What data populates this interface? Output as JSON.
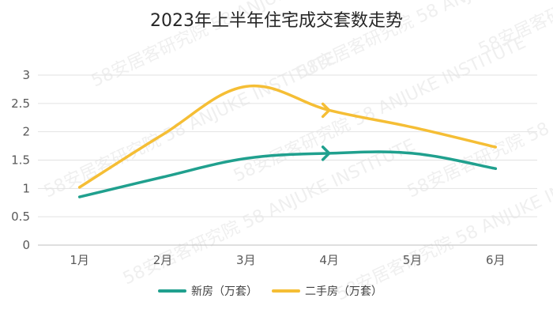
{
  "chart_data": {
    "type": "line",
    "title": "2023年上半年住宅成交套数走势",
    "categories": [
      "1月",
      "2月",
      "3月",
      "4月",
      "5月",
      "6月"
    ],
    "ylim": [
      0,
      3
    ],
    "yticks": [
      "0",
      "0.5",
      "1",
      "1.5",
      "2",
      "2.5",
      "3"
    ],
    "grid": true,
    "legend_position": "bottom",
    "series": [
      {
        "name": "新房（万套）",
        "values": [
          0.85,
          1.2,
          1.53,
          1.62,
          1.62,
          1.35
        ],
        "color": "#20A08E"
      },
      {
        "name": "二手房（万套）",
        "values": [
          1.02,
          1.95,
          2.8,
          2.38,
          2.08,
          1.73
        ],
        "color": "#F5BE35"
      }
    ],
    "watermark": "58安居客研究院 58 ANJUKE INSTITUTE"
  }
}
